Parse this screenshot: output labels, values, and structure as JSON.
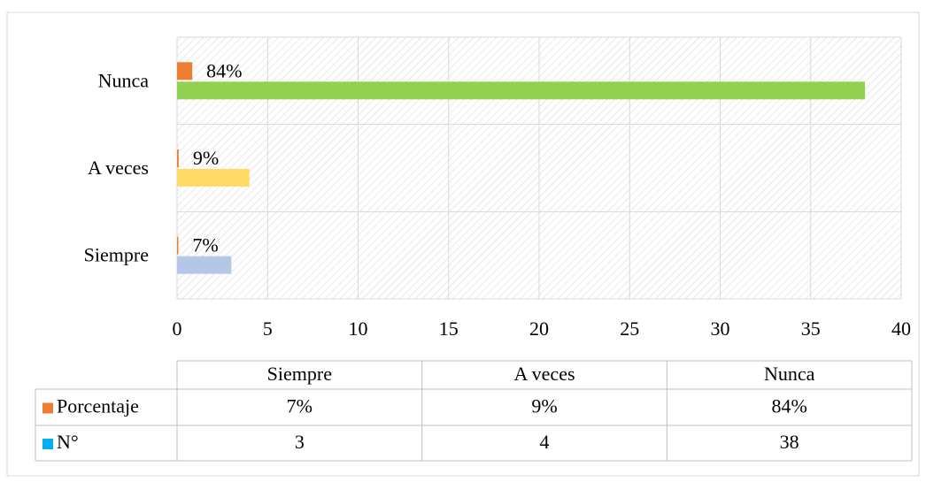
{
  "chart_data": {
    "type": "bar",
    "orientation": "horizontal",
    "categories": [
      "Siempre",
      "A veces",
      "Nunca"
    ],
    "series": [
      {
        "name": "Porcentaje",
        "color": "#ed7d31",
        "values": [
          0.07,
          0.09,
          0.84
        ],
        "value_labels": [
          "7%",
          "9%",
          "84%"
        ]
      },
      {
        "name": "N°",
        "color": "#00b0f0",
        "colors": [
          "#b4c7e7",
          "#ffd966",
          "#92d050"
        ],
        "values": [
          3,
          4,
          38
        ]
      }
    ],
    "xlim": [
      0,
      40
    ],
    "xticks": [
      0,
      5,
      10,
      15,
      20,
      25,
      30,
      35,
      40
    ],
    "grid": true,
    "data_table": true
  }
}
